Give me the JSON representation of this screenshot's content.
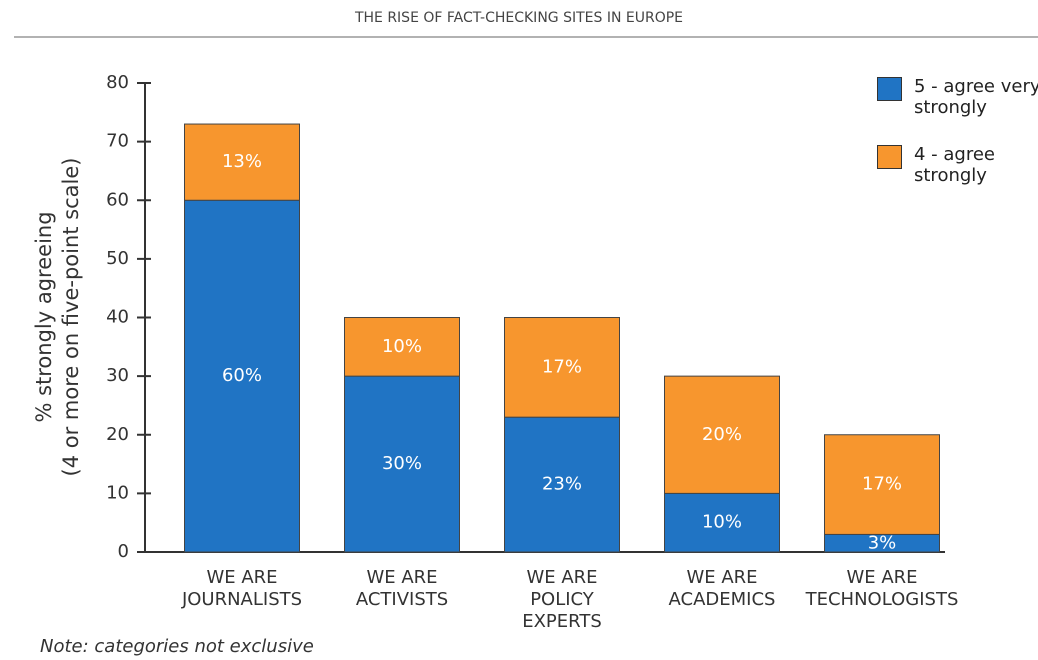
{
  "chart_data": {
    "type": "stacked_bar",
    "title": "THE RISE OF FACT-CHECKING SITES IN EUROPE",
    "ylabel": [
      "% strongly agreeing",
      "(4 or more on five-point scale)"
    ],
    "note": "Note: categories not exclusive",
    "categories": [
      [
        "WE ARE",
        "JOURNALISTS"
      ],
      [
        "WE ARE",
        "ACTIVISTS"
      ],
      [
        "WE ARE",
        "POLICY",
        "EXPERTS"
      ],
      [
        "WE ARE",
        "ACADEMICS"
      ],
      [
        "WE ARE",
        "TECHNOLOGISTS"
      ]
    ],
    "series": [
      {
        "name": "5 - agree very strongly",
        "color": "#2074c4",
        "values": [
          60,
          30,
          23,
          10,
          3
        ],
        "value_labels": [
          "60%",
          "30%",
          "23%",
          "10%",
          "3%"
        ]
      },
      {
        "name": "4 - agree strongly",
        "color": "#f7962e",
        "values": [
          13,
          10,
          17,
          20,
          17
        ],
        "value_labels": [
          "13%",
          "10%",
          "17%",
          "20%",
          "17%"
        ]
      }
    ],
    "ylim": [
      0,
      80
    ],
    "yticks": [
      0,
      10,
      20,
      30,
      40,
      50,
      60,
      70,
      80
    ],
    "legend": "top-right"
  }
}
